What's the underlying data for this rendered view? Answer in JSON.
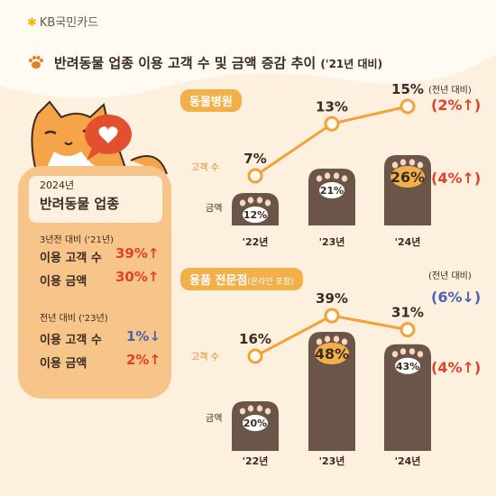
{
  "brand": {
    "logo_text": "KB국민카드"
  },
  "title": {
    "main": "반려동물 업종 이용 고객 수 및 금액 증감 추이",
    "suffix": "('21년 대비)"
  },
  "summary_card": {
    "year": "2024년",
    "heading": "반려동물 업종",
    "block1_title": "3년전 대비 ('21년)",
    "block1_rows": [
      {
        "label": "이용 고객 수",
        "value": "39%",
        "arrow": "↑"
      },
      {
        "label": "이용 금액",
        "value": "30%",
        "arrow": "↑"
      }
    ],
    "block2_title": "전년 대비 ('23년)",
    "block2_rows": [
      {
        "label": "이용 고객 수",
        "value": "1%",
        "arrow": "↓"
      },
      {
        "label": "이용 금액",
        "value": "2%",
        "arrow": "↑"
      }
    ]
  },
  "colors": {
    "accent": "#f2b04a",
    "paw": "#6b5548",
    "up": "#e2402a",
    "down": "#4a62b8",
    "line": "#f2a23a"
  },
  "chart_data": [
    {
      "type": "bar",
      "section": "동물병원",
      "categories": [
        "'22년",
        "'23년",
        "'24년"
      ],
      "series": [
        {
          "name": "고객 수",
          "values": [
            7,
            13,
            15
          ]
        },
        {
          "name": "금액",
          "values": [
            12,
            21,
            26
          ]
        }
      ],
      "yoy_label": "(전년 대비)",
      "yoy": [
        {
          "value": "(2%",
          "arrow": "↑",
          "close": ")"
        },
        {
          "value": "(4%",
          "arrow": "↑",
          "close": ")"
        }
      ]
    },
    {
      "type": "bar",
      "section": "용품 전문점",
      "section_note": "(온라인 포함)",
      "categories": [
        "'22년",
        "'23년",
        "'24년"
      ],
      "series": [
        {
          "name": "고객 수",
          "values": [
            16,
            39,
            31
          ]
        },
        {
          "name": "금액",
          "values": [
            20,
            48,
            43
          ]
        }
      ],
      "yoy_label": "(전년 대비)",
      "yoy": [
        {
          "value": "(6%",
          "arrow": "↓",
          "close": ")"
        },
        {
          "value": "(4%",
          "arrow": "↑",
          "close": ")"
        }
      ]
    }
  ]
}
